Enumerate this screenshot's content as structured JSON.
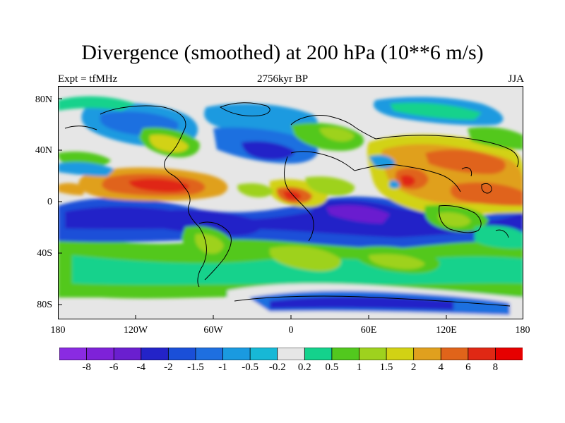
{
  "title": "Divergence (smoothed) at 200 hPa (10**6 m/s)",
  "subtitle_left": "Expt = tfMHz",
  "subtitle_center": "2756kyr BP",
  "subtitle_right": "JJA",
  "lat_labels": [
    "80N",
    "40N",
    "0",
    "40S",
    "80S"
  ],
  "lon_labels": [
    "180",
    "120W",
    "60W",
    "0",
    "60E",
    "120E",
    "180"
  ],
  "colorbar": {
    "labels": [
      "-8",
      "-6",
      "-4",
      "-2",
      "-1.5",
      "-1",
      "-0.5",
      "-0.2",
      "0.2",
      "0.5",
      "1",
      "1.5",
      "2",
      "4",
      "6",
      "8"
    ],
    "colors": [
      "#8a2be2",
      "#7e22d8",
      "#6a1fcf",
      "#2323c8",
      "#1a4fd8",
      "#1e6fe0",
      "#1a9ae0",
      "#17b8d6",
      "#e6e6e6",
      "#14d28c",
      "#52c81e",
      "#9ed21e",
      "#d2d214",
      "#e0a01e",
      "#e0641a",
      "#e02814",
      "#e60000"
    ]
  },
  "map_colors": {
    "land_line": "#000000",
    "background": "#e6e6e6"
  }
}
